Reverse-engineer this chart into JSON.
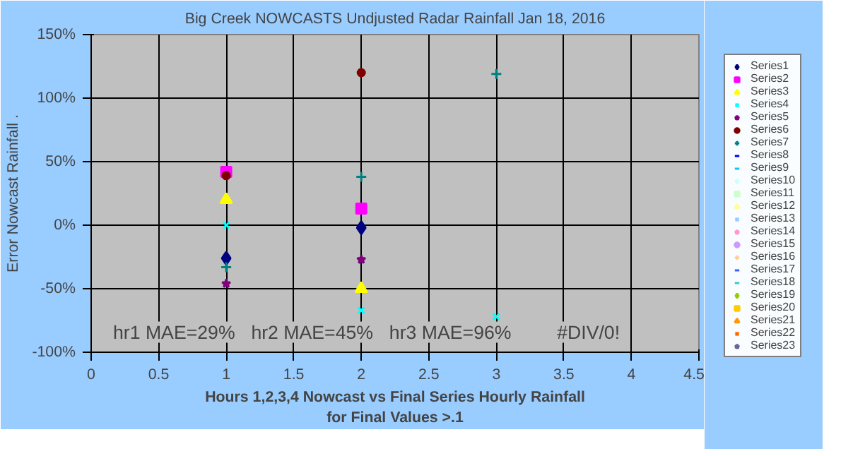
{
  "chart_data": {
    "type": "scatter",
    "title": "Big Creek NOWCASTS Undjusted Radar Rainfall Jan 18, 2016",
    "xlabel": "Hours 1,2,3,4 Nowcast vs Final Series Hourly Rainfall\nfor Final Values >.1",
    "ylabel": "Error Nowcast Rainfall .",
    "x": [
      1,
      2,
      3
    ],
    "xlim": [
      0,
      4.5
    ],
    "xticks": [
      0,
      0.5,
      1,
      1.5,
      2,
      2.5,
      3,
      3.5,
      4,
      4.5
    ],
    "ylim": [
      -100,
      150
    ],
    "yticks": [
      {
        "value": -100,
        "label": "-100%"
      },
      {
        "value": -50,
        "label": "-50%"
      },
      {
        "value": 0,
        "label": "0%"
      },
      {
        "value": 50,
        "label": "50%"
      },
      {
        "value": 100,
        "label": "100%"
      },
      {
        "value": 150,
        "label": "150%"
      }
    ],
    "grid": true,
    "legend": "right",
    "annotations": [
      "hr1 MAE=29%",
      "hr2 MAE=45%",
      "hr3 MAE=96%",
      "#DIV/0!"
    ],
    "series": [
      {
        "name": "Series1",
        "color": "#000080",
        "marker": "diamond",
        "values": [
          -26,
          -2,
          null
        ]
      },
      {
        "name": "Series2",
        "color": "#ff00ff",
        "marker": "square",
        "values": [
          42,
          13,
          null
        ]
      },
      {
        "name": "Series3",
        "color": "#ffff00",
        "marker": "triangle",
        "values": [
          20,
          -50,
          null
        ]
      },
      {
        "name": "Series4",
        "color": "#00ffff",
        "marker": "x",
        "values": [
          0,
          -67,
          -72
        ]
      },
      {
        "name": "Series5",
        "color": "#800080",
        "marker": "star",
        "values": [
          -46,
          -27,
          null
        ]
      },
      {
        "name": "Series6",
        "color": "#800000",
        "marker": "circle",
        "values": [
          39,
          120,
          null
        ]
      },
      {
        "name": "Series7",
        "color": "#008080",
        "marker": "cross",
        "values": [
          -33,
          38,
          119
        ]
      },
      {
        "name": "Series8",
        "color": "#0000ff",
        "marker": "dash",
        "values": [
          null,
          null,
          null
        ]
      },
      {
        "name": "Series9",
        "color": "#00ccff",
        "marker": "dash",
        "values": [
          null,
          null,
          null
        ]
      },
      {
        "name": "Series10",
        "color": "#ccffff",
        "marker": "diamond",
        "values": [
          null,
          null,
          null
        ]
      },
      {
        "name": "Series11",
        "color": "#ccffcc",
        "marker": "square",
        "values": [
          null,
          null,
          null
        ]
      },
      {
        "name": "Series12",
        "color": "#ffff99",
        "marker": "triangle",
        "values": [
          null,
          null,
          null
        ]
      },
      {
        "name": "Series13",
        "color": "#99ccff",
        "marker": "x",
        "values": [
          null,
          null,
          null
        ]
      },
      {
        "name": "Series14",
        "color": "#ff99cc",
        "marker": "star",
        "values": [
          null,
          null,
          null
        ]
      },
      {
        "name": "Series15",
        "color": "#cc99ff",
        "marker": "circle",
        "values": [
          null,
          null,
          null
        ]
      },
      {
        "name": "Series16",
        "color": "#ffcc99",
        "marker": "cross",
        "values": [
          null,
          null,
          null
        ]
      },
      {
        "name": "Series17",
        "color": "#3366ff",
        "marker": "dash",
        "values": [
          null,
          null,
          null
        ]
      },
      {
        "name": "Series18",
        "color": "#33cccc",
        "marker": "dash",
        "values": [
          null,
          null,
          null
        ]
      },
      {
        "name": "Series19",
        "color": "#99cc00",
        "marker": "diamond",
        "values": [
          null,
          null,
          null
        ]
      },
      {
        "name": "Series20",
        "color": "#ffcc00",
        "marker": "square",
        "values": [
          null,
          null,
          null
        ]
      },
      {
        "name": "Series21",
        "color": "#ff9900",
        "marker": "triangle",
        "values": [
          null,
          null,
          null
        ]
      },
      {
        "name": "Series22",
        "color": "#ff6600",
        "marker": "x",
        "values": [
          null,
          null,
          null
        ]
      },
      {
        "name": "Series23",
        "color": "#666699",
        "marker": "star",
        "values": [
          null,
          null,
          null
        ]
      }
    ]
  }
}
